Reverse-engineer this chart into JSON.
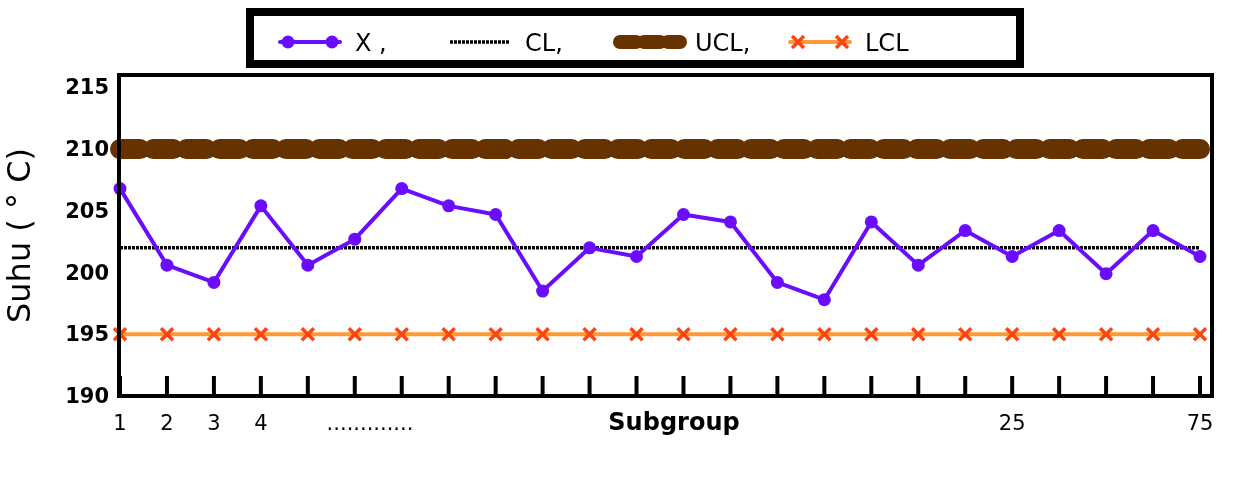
{
  "chart_data": {
    "type": "line",
    "xlabel": "Subgroup",
    "ylabel": "Suhu ( ° C)",
    "annotations": [
      "............."
    ],
    "categories": [
      "1",
      "2",
      "3",
      "4",
      null,
      null,
      null,
      null,
      null,
      null,
      null,
      null,
      null,
      null,
      null,
      null,
      null,
      null,
      null,
      "25",
      null,
      null,
      null,
      "75"
    ],
    "ylim": [
      190,
      216
    ],
    "yticks": [
      190,
      195,
      200,
      205,
      210,
      215
    ],
    "legend": "top",
    "grid": false,
    "series": [
      {
        "name": "X ,",
        "color": "#6a0dff",
        "marker": "circle",
        "line_style": "solid",
        "values": [
          206.8,
          200.6,
          199.2,
          205.4,
          200.6,
          202.7,
          206.8,
          205.4,
          204.7,
          198.5,
          202.0,
          201.3,
          204.7,
          204.1,
          199.2,
          197.8,
          204.1,
          200.6,
          203.4,
          201.3,
          203.4,
          199.9,
          203.4,
          201.3
        ]
      },
      {
        "name": "CL,",
        "color": "#000000",
        "marker": "none",
        "line_style": "dashed",
        "values": [
          202,
          202,
          202,
          202,
          202,
          202,
          202,
          202,
          202,
          202,
          202,
          202,
          202,
          202,
          202,
          202,
          202,
          202,
          202,
          202,
          202,
          202,
          202,
          202
        ]
      },
      {
        "name": "UCL,",
        "color": "#663300",
        "marker": "none",
        "line_style": "dotted",
        "values": [
          210,
          210,
          210,
          210,
          210,
          210,
          210,
          210,
          210,
          210,
          210,
          210,
          210,
          210,
          210,
          210,
          210,
          210,
          210,
          210,
          210,
          210,
          210,
          210
        ]
      },
      {
        "name": "LCL",
        "color": "#ff9933",
        "marker": "cross",
        "line_style": "solid",
        "values": [
          195,
          195,
          195,
          195,
          195,
          195,
          195,
          195,
          195,
          195,
          195,
          195,
          195,
          195,
          195,
          195,
          195,
          195,
          195,
          195,
          195,
          195,
          195,
          195
        ]
      }
    ]
  }
}
